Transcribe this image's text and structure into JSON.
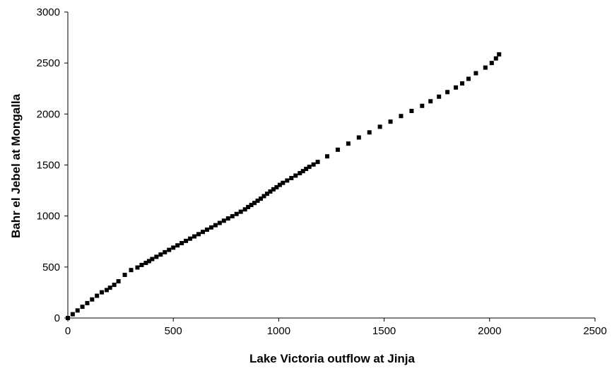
{
  "chart_data": {
    "type": "scatter",
    "title": "",
    "xlabel": "Lake Victoria outflow at Jinja",
    "ylabel": "Bahr el Jebel at Mongalla",
    "xlim": [
      0,
      2500
    ],
    "ylim": [
      0,
      3000
    ],
    "x_ticks": [
      0,
      500,
      1000,
      1500,
      2000,
      2500
    ],
    "y_ticks": [
      0,
      500,
      1000,
      1500,
      2000,
      2500,
      3000
    ],
    "x_tick_labels": [
      "0",
      "500",
      "1000",
      "1500",
      "2000",
      "2500"
    ],
    "y_tick_labels": [
      "0",
      "500",
      "1000",
      "1500",
      "2000",
      "2500",
      "3000"
    ],
    "grid": false,
    "legend": "none",
    "marker": "square",
    "marker_color": "#000000",
    "series": [
      {
        "points": [
          [
            0,
            0
          ],
          [
            23,
            37
          ],
          [
            46,
            74
          ],
          [
            69,
            110
          ],
          [
            92,
            146
          ],
          [
            115,
            182
          ],
          [
            138,
            218
          ],
          [
            161,
            252
          ],
          [
            184,
            274
          ],
          [
            200,
            297
          ],
          [
            220,
            325
          ],
          [
            240,
            360
          ],
          [
            270,
            423
          ],
          [
            300,
            470
          ],
          [
            330,
            495
          ],
          [
            350,
            520
          ],
          [
            370,
            540
          ],
          [
            385,
            558
          ],
          [
            400,
            578
          ],
          [
            420,
            600
          ],
          [
            440,
            622
          ],
          [
            460,
            645
          ],
          [
            480,
            668
          ],
          [
            500,
            690
          ],
          [
            520,
            712
          ],
          [
            540,
            734
          ],
          [
            560,
            756
          ],
          [
            580,
            778
          ],
          [
            600,
            800
          ],
          [
            620,
            822
          ],
          [
            640,
            844
          ],
          [
            660,
            866
          ],
          [
            680,
            888
          ],
          [
            700,
            910
          ],
          [
            720,
            932
          ],
          [
            740,
            954
          ],
          [
            760,
            976
          ],
          [
            780,
            998
          ],
          [
            800,
            1020
          ],
          [
            820,
            1042
          ],
          [
            840,
            1065
          ],
          [
            855,
            1088
          ],
          [
            870,
            1108
          ],
          [
            885,
            1128
          ],
          [
            900,
            1150
          ],
          [
            915,
            1170
          ],
          [
            930,
            1195
          ],
          [
            945,
            1218
          ],
          [
            960,
            1240
          ],
          [
            975,
            1262
          ],
          [
            990,
            1282
          ],
          [
            1005,
            1305
          ],
          [
            1020,
            1325
          ],
          [
            1040,
            1348
          ],
          [
            1060,
            1372
          ],
          [
            1080,
            1396
          ],
          [
            1100,
            1420
          ],
          [
            1115,
            1440
          ],
          [
            1130,
            1462
          ],
          [
            1145,
            1482
          ],
          [
            1165,
            1505
          ],
          [
            1185,
            1530
          ],
          [
            1230,
            1585
          ],
          [
            1280,
            1650
          ],
          [
            1330,
            1710
          ],
          [
            1380,
            1770
          ],
          [
            1430,
            1820
          ],
          [
            1480,
            1875
          ],
          [
            1530,
            1925
          ],
          [
            1580,
            1980
          ],
          [
            1630,
            2030
          ],
          [
            1680,
            2080
          ],
          [
            1720,
            2125
          ],
          [
            1760,
            2170
          ],
          [
            1800,
            2215
          ],
          [
            1840,
            2260
          ],
          [
            1870,
            2300
          ],
          [
            1900,
            2345
          ],
          [
            1935,
            2400
          ],
          [
            1980,
            2455
          ],
          [
            2010,
            2500
          ],
          [
            2030,
            2545
          ],
          [
            2045,
            2585
          ]
        ]
      }
    ]
  }
}
